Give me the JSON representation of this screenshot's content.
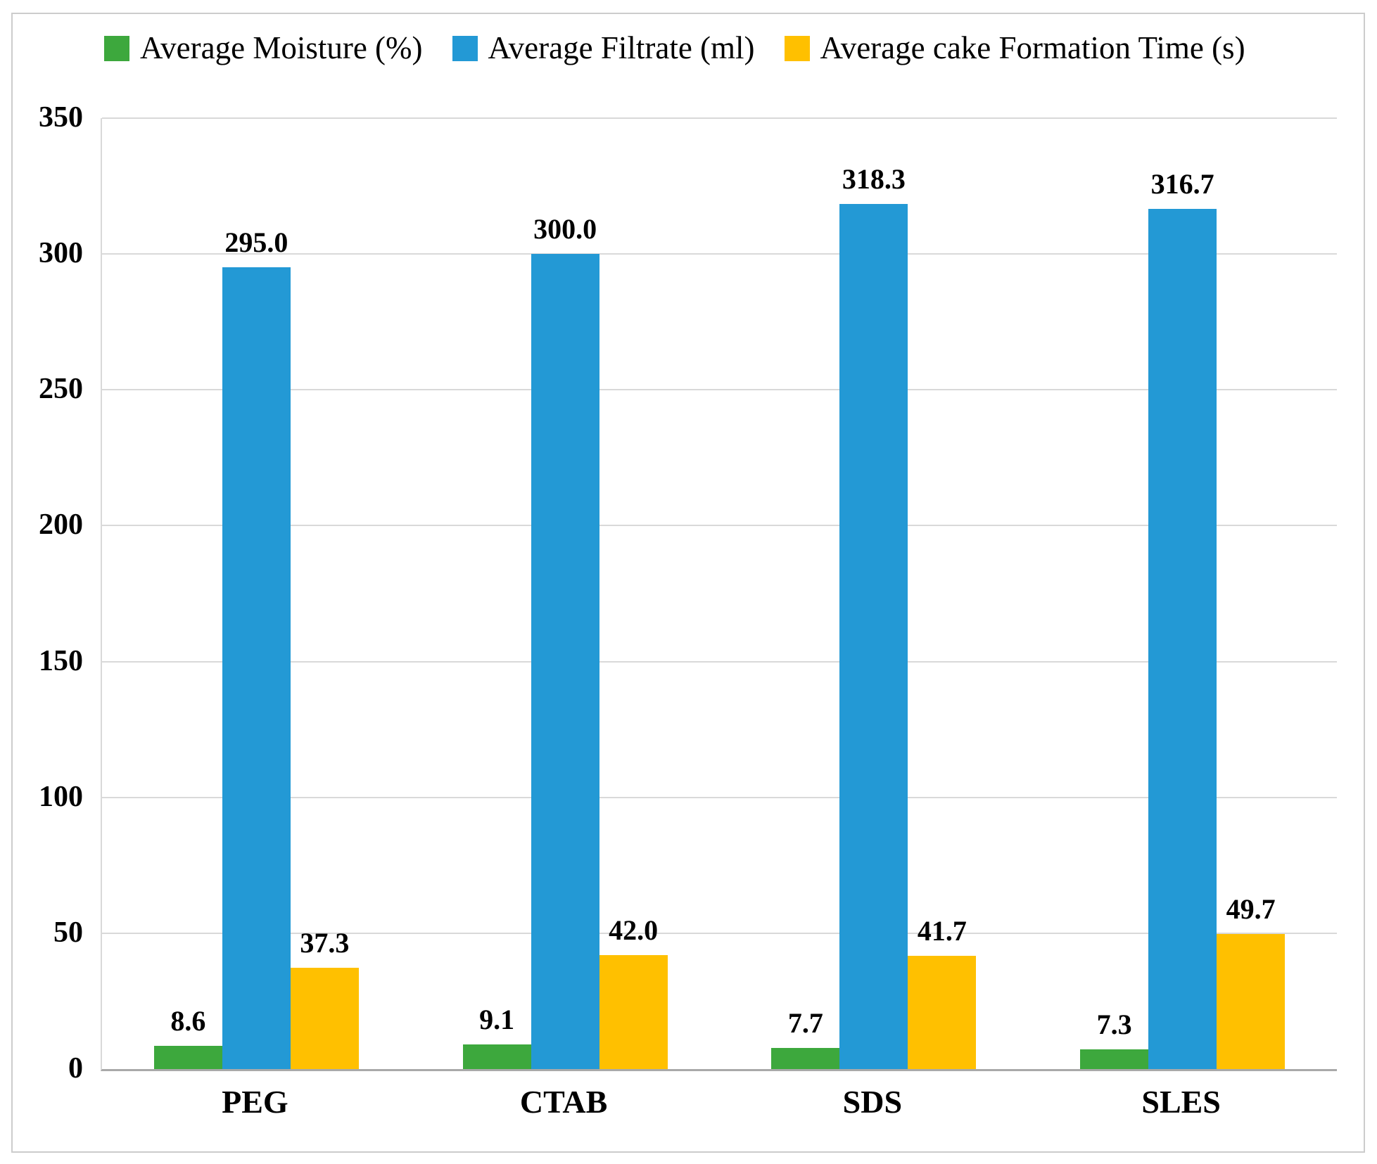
{
  "chart_data": {
    "type": "bar",
    "title": "",
    "categories": [
      "PEG",
      "CTAB",
      "SDS",
      "SLES"
    ],
    "series": [
      {
        "key": "moisture",
        "name": "Average Moisture (%)",
        "color": "#3da83d",
        "values": [
          8.6,
          9.1,
          7.7,
          7.3
        ]
      },
      {
        "key": "filtrate",
        "name": "Average Filtrate (ml)",
        "color": "#2399d5",
        "values": [
          295.0,
          300.0,
          318.3,
          316.7
        ]
      },
      {
        "key": "cake-time",
        "name": "Average cake Formation Time (s)",
        "color": "#ffc000",
        "values": [
          37.3,
          42.0,
          41.7,
          49.7
        ]
      }
    ],
    "ylim": [
      0,
      350
    ],
    "yticks": [
      0,
      50,
      100,
      150,
      200,
      250,
      300,
      350
    ],
    "grid": true,
    "legend_position": "top-left",
    "data_label_decimals": 1,
    "xlabel": "",
    "ylabel": "",
    "style": {
      "grid_color": "#d9d9d9",
      "axis_color": "#a9a9a9",
      "frame_color": "#cccccc",
      "text_color": "#000000",
      "background": "#ffffff"
    }
  }
}
